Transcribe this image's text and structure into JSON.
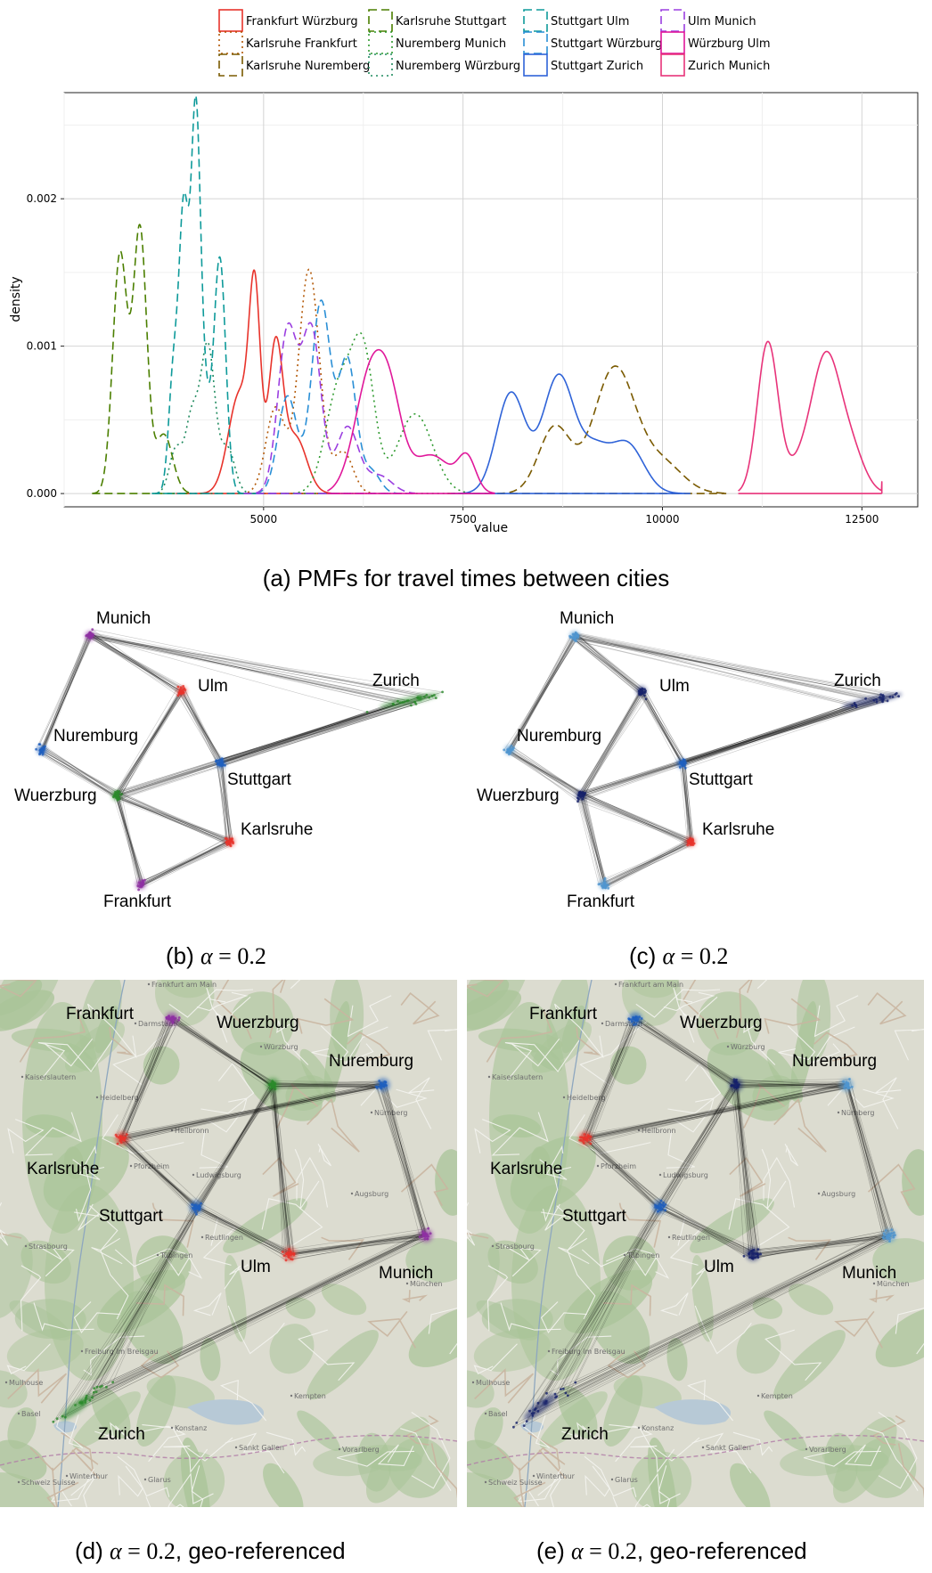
{
  "figure": {
    "captions": {
      "a": "(a) PMFs for travel times between cities",
      "b": {
        "prefix": "(b) ",
        "alpha": "α",
        "eq": " = ",
        "val": "0.2",
        "suffix": ""
      },
      "c": {
        "prefix": "(c) ",
        "alpha": "α",
        "eq": " = ",
        "val": "0.2",
        "suffix": ""
      },
      "d": {
        "prefix": "(d) ",
        "alpha": "α",
        "eq": " = ",
        "val": "0.2",
        "suffix": ", geo-referenced"
      },
      "e": {
        "prefix": "(e) ",
        "alpha": "α",
        "eq": " = ",
        "val": "0.2",
        "suffix": ", geo-referenced"
      }
    },
    "colors": {
      "red": "#e8332b",
      "purple": "#8e2fa3",
      "green": "#2a8a2a",
      "blue": "#1f5fbf",
      "dark_navy": "#15206a",
      "light_blue": "#4f95cf",
      "edge": "#000000",
      "map_bg": "#dcdcd0",
      "map_road": "#f4f4f0",
      "map_forest": "#a9c498",
      "map_water": "#b7c9d6"
    },
    "map_labels": [
      "Frankfurt am Main",
      "Darmstadt",
      "Würzburg",
      "Nürnberg",
      "Kaiserslautern",
      "Heidelberg",
      "Heilbronn",
      "Pforzheim",
      "Strasbourg",
      "Ludwigsburg",
      "Reutlingen",
      "Tübingen",
      "Freiburg im Breisgau",
      "Mulhouse",
      "Basel",
      "Winterthur",
      "Sankt Gallen",
      "Vorarlberg",
      "Schweiz Suisse",
      "Glarus",
      "Augsburg",
      "München",
      "Kempten",
      "Konstanz"
    ]
  },
  "chart_data": {
    "type": "line",
    "xlabel": "value",
    "ylabel": "density",
    "xlim": [
      2500,
      13200
    ],
    "ylim": [
      -9e-05,
      0.00272
    ],
    "x_ticks": [
      5000,
      7500,
      10000,
      12500
    ],
    "x_tick_labels": [
      "5000",
      "7500",
      "10000",
      "12500"
    ],
    "y_ticks": [
      0.0,
      0.001,
      0.002
    ],
    "y_tick_labels": [
      "0.000",
      "0.001",
      "0.002"
    ],
    "grid": true,
    "legend_position": "top",
    "series": [
      {
        "name": "Frankfurt Würzburg",
        "color": "#e8332b",
        "dash": "solid",
        "x_range": [
          3900,
          5950
        ],
        "peaks": [
          {
            "mu": 4700,
            "sigma": 140,
            "amp": 0.00068
          },
          {
            "mu": 4890,
            "sigma": 70,
            "amp": 0.00122
          },
          {
            "mu": 5150,
            "sigma": 90,
            "amp": 0.00098
          },
          {
            "mu": 5400,
            "sigma": 140,
            "amp": 0.00038
          }
        ]
      },
      {
        "name": "Karlsruhe Frankfurt",
        "color": "#b35806",
        "dash": "dotted",
        "x_range": [
          4800,
          6400
        ],
        "peaks": [
          {
            "mu": 5150,
            "sigma": 120,
            "amp": 0.00058
          },
          {
            "mu": 5570,
            "sigma": 130,
            "amp": 0.00152
          },
          {
            "mu": 6000,
            "sigma": 120,
            "amp": 0.00028
          }
        ]
      },
      {
        "name": "Karlsruhe Nuremberg",
        "color": "#7a5a00",
        "dash": "dashed",
        "x_range": [
          7300,
          10800
        ],
        "peaks": [
          {
            "mu": 8650,
            "sigma": 200,
            "amp": 0.00045
          },
          {
            "mu": 9400,
            "sigma": 260,
            "amp": 0.00085
          },
          {
            "mu": 10000,
            "sigma": 260,
            "amp": 0.0002
          }
        ]
      },
      {
        "name": "Karlsruhe Stuttgart",
        "color": "#4b7f00",
        "dash": "dashed",
        "x_range": [
          2850,
          4100
        ],
        "peaks": [
          {
            "mu": 3200,
            "sigma": 90,
            "amp": 0.00162
          },
          {
            "mu": 3450,
            "sigma": 85,
            "amp": 0.00178
          },
          {
            "mu": 3750,
            "sigma": 110,
            "amp": 0.0004
          }
        ]
      },
      {
        "name": "Nuremberg Munich",
        "color": "#2e9a2e",
        "dash": "dotted",
        "x_range": [
          5300,
          7600
        ],
        "peaks": [
          {
            "mu": 5950,
            "sigma": 170,
            "amp": 0.00072
          },
          {
            "mu": 6250,
            "sigma": 140,
            "amp": 0.0009
          },
          {
            "mu": 6900,
            "sigma": 220,
            "amp": 0.00054
          }
        ]
      },
      {
        "name": "Nuremberg Würzburg",
        "color": "#1f8a5e",
        "dash": "dotted",
        "x_range": [
          3600,
          5000
        ],
        "peaks": [
          {
            "mu": 3900,
            "sigma": 80,
            "amp": 0.0003
          },
          {
            "mu": 4100,
            "sigma": 80,
            "amp": 0.0005
          },
          {
            "mu": 4300,
            "sigma": 90,
            "amp": 0.001
          },
          {
            "mu": 4550,
            "sigma": 90,
            "amp": 0.0003
          }
        ]
      },
      {
        "name": "Stuttgart Ulm",
        "color": "#0e9a9a",
        "dash": "dashed",
        "x_range": [
          3600,
          4950
        ],
        "peaks": [
          {
            "mu": 3870,
            "sigma": 60,
            "amp": 0.0008
          },
          {
            "mu": 4000,
            "sigma": 60,
            "amp": 0.00185
          },
          {
            "mu": 4150,
            "sigma": 60,
            "amp": 0.00255
          },
          {
            "mu": 4450,
            "sigma": 75,
            "amp": 0.0016
          },
          {
            "mu": 4270,
            "sigma": 60,
            "amp": 0.0005
          }
        ]
      },
      {
        "name": "Stuttgart Würzburg",
        "color": "#2a8fd6",
        "dash": "dashed",
        "x_range": [
          4900,
          6800
        ],
        "peaks": [
          {
            "mu": 5300,
            "sigma": 120,
            "amp": 0.00066
          },
          {
            "mu": 5720,
            "sigma": 120,
            "amp": 0.0013
          },
          {
            "mu": 6050,
            "sigma": 110,
            "amp": 0.0009
          },
          {
            "mu": 6350,
            "sigma": 110,
            "amp": 0.00015
          }
        ]
      },
      {
        "name": "Stuttgart Zurich",
        "color": "#2f63d8",
        "dash": "solid",
        "x_range": [
          7350,
          10350
        ],
        "peaks": [
          {
            "mu": 8100,
            "sigma": 180,
            "amp": 0.00068
          },
          {
            "mu": 8700,
            "sigma": 200,
            "amp": 0.0008
          },
          {
            "mu": 9150,
            "sigma": 170,
            "amp": 0.00025
          },
          {
            "mu": 9550,
            "sigma": 210,
            "amp": 0.00034
          }
        ]
      },
      {
        "name": "Ulm Munich",
        "color": "#9b3fe0",
        "dash": "dashed",
        "x_range": [
          4750,
          6900
        ],
        "peaks": [
          {
            "mu": 5300,
            "sigma": 120,
            "amp": 0.0011
          },
          {
            "mu": 5600,
            "sigma": 120,
            "amp": 0.0011
          },
          {
            "mu": 6050,
            "sigma": 140,
            "amp": 0.00045
          },
          {
            "mu": 6450,
            "sigma": 160,
            "amp": 0.00012
          }
        ]
      },
      {
        "name": "Würzburg Ulm",
        "color": "#e0179a",
        "dash": "solid",
        "x_range": [
          5800,
          7900
        ],
        "peaks": [
          {
            "mu": 6350,
            "sigma": 200,
            "amp": 0.00082
          },
          {
            "mu": 6600,
            "sigma": 150,
            "amp": 0.0004
          },
          {
            "mu": 7100,
            "sigma": 250,
            "amp": 0.00026
          },
          {
            "mu": 7550,
            "sigma": 110,
            "amp": 0.00022
          }
        ]
      },
      {
        "name": "Zurich Munich",
        "color": "#e8337a",
        "dash": "solid",
        "x_range": [
          10950,
          12750
        ],
        "peaks": [
          {
            "mu": 11320,
            "sigma": 130,
            "amp": 0.00102
          },
          {
            "mu": 11750,
            "sigma": 180,
            "amp": 0.0002
          },
          {
            "mu": 12050,
            "sigma": 170,
            "amp": 0.00085
          },
          {
            "mu": 12350,
            "sigma": 170,
            "amp": 0.0003
          }
        ],
        "tail_end": 8e-05
      }
    ]
  },
  "graph_panels": {
    "b": {
      "edges": [
        [
          "Munich",
          "Nuremburg"
        ],
        [
          "Munich",
          "Ulm"
        ],
        [
          "Munich",
          "Zurich"
        ],
        [
          "Nuremburg",
          "Wuerzburg"
        ],
        [
          "Wuerzburg",
          "Ulm"
        ],
        [
          "Wuerzburg",
          "Karlsruhe"
        ],
        [
          "Wuerzburg",
          "Frankfurt"
        ],
        [
          "Wuerzburg",
          "Zurich"
        ],
        [
          "Ulm",
          "Stuttgart"
        ],
        [
          "Stuttgart",
          "Karlsruhe"
        ],
        [
          "Stuttgart",
          "Zurich"
        ],
        [
          "Karlsruhe",
          "Frankfurt"
        ]
      ],
      "nodes": [
        {
          "name": "Munich",
          "label": "Munich",
          "color": "purple"
        },
        {
          "name": "Ulm",
          "label": "Ulm",
          "color": "red"
        },
        {
          "name": "Zurich",
          "label": "Zurich",
          "color": "green"
        },
        {
          "name": "Nuremburg",
          "label": "Nuremburg",
          "color": "blue"
        },
        {
          "name": "Stuttgart",
          "label": "Stuttgart",
          "color": "blue"
        },
        {
          "name": "Wuerzburg",
          "label": "Wuerzburg",
          "color": "green"
        },
        {
          "name": "Karlsruhe",
          "label": "Karlsruhe",
          "color": "red"
        },
        {
          "name": "Frankfurt",
          "label": "Frankfurt",
          "color": "purple"
        }
      ]
    },
    "c": {
      "edges": [
        [
          "Munich",
          "Nuremburg"
        ],
        [
          "Munich",
          "Ulm"
        ],
        [
          "Munich",
          "Zurich"
        ],
        [
          "Nuremburg",
          "Wuerzburg"
        ],
        [
          "Wuerzburg",
          "Ulm"
        ],
        [
          "Wuerzburg",
          "Karlsruhe"
        ],
        [
          "Wuerzburg",
          "Frankfurt"
        ],
        [
          "Wuerzburg",
          "Zurich"
        ],
        [
          "Ulm",
          "Stuttgart"
        ],
        [
          "Stuttgart",
          "Karlsruhe"
        ],
        [
          "Stuttgart",
          "Zurich"
        ],
        [
          "Karlsruhe",
          "Frankfurt"
        ]
      ],
      "nodes": [
        {
          "name": "Munich",
          "label": "Munich",
          "color": "light_blue"
        },
        {
          "name": "Ulm",
          "label": "Ulm",
          "color": "dark_navy"
        },
        {
          "name": "Zurich",
          "label": "Zurich",
          "color": "dark_navy"
        },
        {
          "name": "Nuremburg",
          "label": "Nuremburg",
          "color": "light_blue"
        },
        {
          "name": "Stuttgart",
          "label": "Stuttgart",
          "color": "blue"
        },
        {
          "name": "Wuerzburg",
          "label": "Wuerzburg",
          "color": "dark_navy"
        },
        {
          "name": "Karlsruhe",
          "label": "Karlsruhe",
          "color": "red"
        },
        {
          "name": "Frankfurt",
          "label": "Frankfurt",
          "color": "light_blue"
        }
      ]
    },
    "d": {
      "edges": [
        [
          "Frankfurt",
          "Wuerzburg"
        ],
        [
          "Frankfurt",
          "Karlsruhe"
        ],
        [
          "Karlsruhe",
          "Nuremburg"
        ],
        [
          "Karlsruhe",
          "Stuttgart"
        ],
        [
          "Wuerzburg",
          "Nuremburg"
        ],
        [
          "Wuerzburg",
          "Ulm"
        ],
        [
          "Wuerzburg",
          "Stuttgart"
        ],
        [
          "Nuremburg",
          "Munich"
        ],
        [
          "Stuttgart",
          "Ulm"
        ],
        [
          "Stuttgart",
          "Zurich"
        ],
        [
          "Ulm",
          "Munich"
        ],
        [
          "Munich",
          "Zurich"
        ]
      ],
      "nodes": [
        {
          "name": "Frankfurt",
          "label": "Frankfurt",
          "color": "purple"
        },
        {
          "name": "Wuerzburg",
          "label": "Wuerzburg",
          "color": "green"
        },
        {
          "name": "Nuremburg",
          "label": "Nuremburg",
          "color": "blue"
        },
        {
          "name": "Karlsruhe",
          "label": "Karlsruhe",
          "color": "red"
        },
        {
          "name": "Stuttgart",
          "label": "Stuttgart",
          "color": "blue"
        },
        {
          "name": "Ulm",
          "label": "Ulm",
          "color": "red"
        },
        {
          "name": "Munich",
          "label": "Munich",
          "color": "purple"
        },
        {
          "name": "Zurich",
          "label": "Zurich",
          "color": "green"
        }
      ]
    },
    "e": {
      "edges": [
        [
          "Frankfurt",
          "Wuerzburg"
        ],
        [
          "Frankfurt",
          "Karlsruhe"
        ],
        [
          "Karlsruhe",
          "Nuremburg"
        ],
        [
          "Karlsruhe",
          "Stuttgart"
        ],
        [
          "Wuerzburg",
          "Nuremburg"
        ],
        [
          "Wuerzburg",
          "Ulm"
        ],
        [
          "Wuerzburg",
          "Stuttgart"
        ],
        [
          "Nuremburg",
          "Munich"
        ],
        [
          "Stuttgart",
          "Ulm"
        ],
        [
          "Stuttgart",
          "Zurich"
        ],
        [
          "Ulm",
          "Munich"
        ],
        [
          "Munich",
          "Zurich"
        ]
      ],
      "nodes": [
        {
          "name": "Frankfurt",
          "label": "Frankfurt",
          "color": "blue"
        },
        {
          "name": "Wuerzburg",
          "label": "Wuerzburg",
          "color": "dark_navy"
        },
        {
          "name": "Nuremburg",
          "label": "Nuremburg",
          "color": "light_blue"
        },
        {
          "name": "Karlsruhe",
          "label": "Karlsruhe",
          "color": "red"
        },
        {
          "name": "Stuttgart",
          "label": "Stuttgart",
          "color": "blue"
        },
        {
          "name": "Ulm",
          "label": "Ulm",
          "color": "dark_navy"
        },
        {
          "name": "Munich",
          "label": "Munich",
          "color": "light_blue"
        },
        {
          "name": "Zurich",
          "label": "Zurich",
          "color": "dark_navy"
        }
      ]
    }
  }
}
